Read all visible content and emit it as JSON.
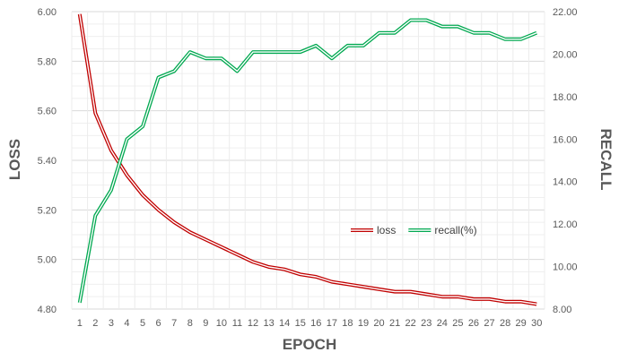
{
  "chart_data": {
    "type": "line",
    "xlabel": "EPOCH",
    "ylabel": "LOSS",
    "y2label": "RECALL",
    "x": [
      1,
      2,
      3,
      4,
      5,
      6,
      7,
      8,
      9,
      10,
      11,
      12,
      13,
      14,
      15,
      16,
      17,
      18,
      19,
      20,
      21,
      22,
      23,
      24,
      25,
      26,
      27,
      28,
      29,
      30
    ],
    "ylim": [
      4.8,
      6.0
    ],
    "y2lim": [
      8.0,
      22.0
    ],
    "yticks": [
      "4.80",
      "5.00",
      "5.20",
      "5.40",
      "5.60",
      "5.80",
      "6.00"
    ],
    "y2ticks": [
      "8.00",
      "10.00",
      "12.00",
      "14.00",
      "16.00",
      "18.00",
      "20.00",
      "22.00"
    ],
    "grid": true,
    "legend_position": "center-right",
    "series": [
      {
        "name": "loss",
        "axis": "left",
        "color": "#c00000",
        "values": [
          5.99,
          5.59,
          5.44,
          5.34,
          5.26,
          5.2,
          5.15,
          5.11,
          5.08,
          5.05,
          5.02,
          4.99,
          4.97,
          4.96,
          4.94,
          4.93,
          4.91,
          4.9,
          4.89,
          4.88,
          4.87,
          4.87,
          4.86,
          4.85,
          4.85,
          4.84,
          4.84,
          4.83,
          4.83,
          4.82
        ]
      },
      {
        "name": "recall(%)",
        "axis": "right",
        "color": "#00a850",
        "values": [
          8.3,
          12.4,
          13.6,
          16.0,
          16.6,
          18.9,
          19.2,
          20.1,
          19.8,
          19.8,
          19.2,
          20.1,
          20.1,
          20.1,
          20.1,
          20.4,
          19.8,
          20.4,
          20.4,
          21.0,
          21.0,
          21.6,
          21.6,
          21.3,
          21.3,
          21.0,
          21.0,
          20.7,
          20.7,
          21.0
        ]
      }
    ]
  }
}
